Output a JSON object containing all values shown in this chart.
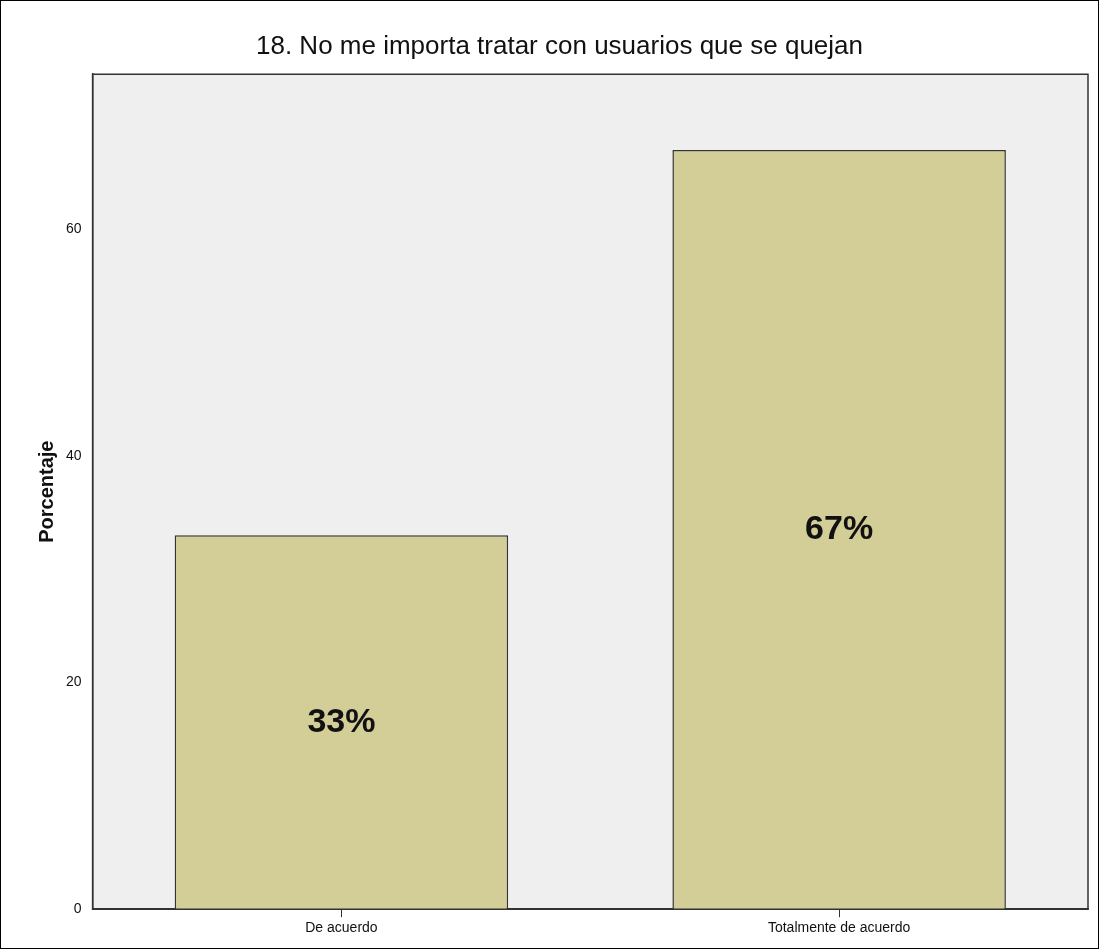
{
  "chart_data": {
    "type": "bar",
    "title": "18. No me importa tratar con usuarios que se quejan",
    "ylabel": "Porcentaje",
    "categories": [
      "De acuerdo",
      "Totalmente de acuerdo"
    ],
    "values": [
      33,
      67
    ],
    "value_labels": [
      "33%",
      "67%"
    ],
    "color": "#d3ce97",
    "ylim": [
      0,
      73.7
    ],
    "yticks": [
      0,
      20,
      40,
      60
    ],
    "grid": false,
    "legend": false
  }
}
